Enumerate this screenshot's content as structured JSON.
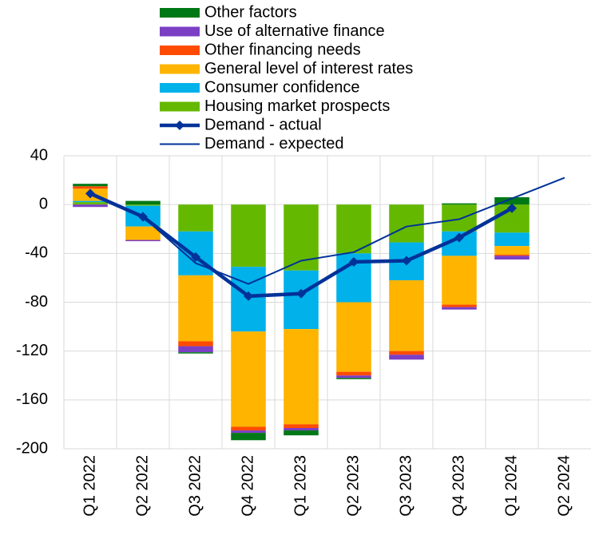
{
  "chart_data": {
    "type": "bar",
    "stacked": true,
    "categories": [
      "Q1 2022",
      "Q2 2022",
      "Q3 2022",
      "Q4 2022",
      "Q1 2023",
      "Q2 2023",
      "Q3 2023",
      "Q4 2023",
      "Q1 2024",
      "Q2 2024"
    ],
    "series": [
      {
        "name": "Housing market prospects",
        "color": "#65b800",
        "values": [
          2,
          -1,
          -22,
          -51,
          -54,
          -40,
          -31,
          -22,
          -23,
          null
        ]
      },
      {
        "name": "Consumer confidence",
        "color": "#00b1ea",
        "values": [
          1,
          -17,
          -36,
          -53,
          -48,
          -40,
          -31,
          -20,
          -11,
          null
        ]
      },
      {
        "name": "General level of interest rates",
        "color": "#ffb400",
        "values": [
          10,
          -11,
          -54,
          -78,
          -78,
          -57,
          -58,
          -40,
          -7,
          null
        ]
      },
      {
        "name": "Other financing needs",
        "color": "#ff4b00",
        "values": [
          2,
          0,
          -4,
          -3,
          -3,
          -3,
          -3,
          -2,
          -1,
          null
        ]
      },
      {
        "name": "Use of alternative finance",
        "color": "#7b3fc4",
        "values": [
          -2,
          -1,
          -5,
          -2,
          -2,
          -2,
          -4,
          -2,
          -3,
          null
        ]
      },
      {
        "name": "Other factors",
        "color": "#007816",
        "values": [
          2,
          3,
          -1,
          -6,
          -4,
          -1,
          0,
          1,
          6,
          null
        ]
      }
    ],
    "lines": [
      {
        "name": "Demand - actual",
        "color": "#003299",
        "values": [
          9,
          -10,
          -43,
          -75,
          -73,
          -47,
          -46,
          -27,
          -3,
          null
        ],
        "markers": true
      },
      {
        "name": "Demand - expected",
        "color": "#003299",
        "values": [
          10,
          -10,
          -48,
          -65,
          -46,
          -39,
          -18,
          -12,
          5,
          22
        ],
        "markers": false
      }
    ],
    "ylim": [
      -200,
      40
    ],
    "yticks": [
      40,
      0,
      -40,
      -80,
      -120,
      -160,
      -200
    ],
    "grid": true
  }
}
